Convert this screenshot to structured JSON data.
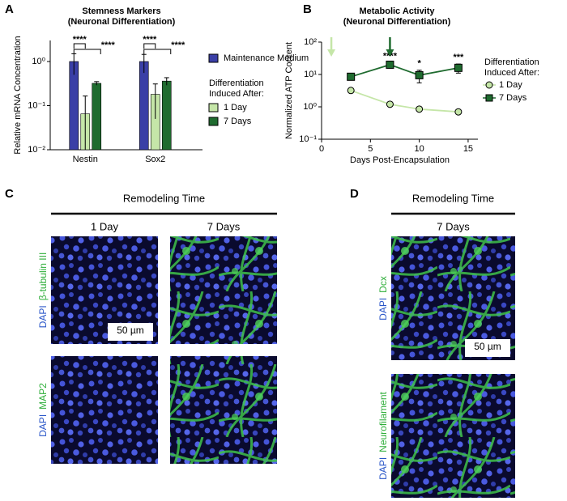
{
  "panel_labels": [
    "A",
    "B",
    "C",
    "D"
  ],
  "chart_data": [
    {
      "type": "bar",
      "title": "Stemness Markers",
      "subtitle": "(Neuronal Differentiation)",
      "y_label": "Relative mRNA Concentration",
      "log_y": true,
      "ylim": [
        0.01,
        3
      ],
      "yticks": [
        {
          "value": 0.01,
          "label": "10⁻²"
        },
        {
          "value": 0.1,
          "label": "10⁻¹"
        },
        {
          "value": 1,
          "label": "10⁰"
        }
      ],
      "categories": [
        "Nestin",
        "Sox2"
      ],
      "series": [
        {
          "name": "Maintenance Medium",
          "color": "#3a3fa6",
          "values": [
            1,
            1
          ],
          "errors": [
            0.5,
            0.45
          ]
        },
        {
          "name": "1 Day",
          "color": "#c5e6a8",
          "values": [
            0.065,
            0.18
          ],
          "errors": [
            0.1,
            0.13
          ]
        },
        {
          "name": "7 Days",
          "color": "#1f6b2f",
          "values": [
            0.32,
            0.36
          ],
          "errors": [
            0.03,
            0.07
          ]
        }
      ],
      "legend_title": [
        "Differentiation",
        "Induced After:"
      ],
      "significance": [
        [
          "****",
          "****"
        ],
        [
          "****",
          "****"
        ]
      ]
    },
    {
      "type": "line",
      "title": "Metabolic Activity",
      "subtitle": "(Neuronal Differentiation)",
      "x_label": "Days Post-Encapsulation",
      "y_label": "Normalized ATP Content",
      "log_y": true,
      "xlim": [
        0,
        16
      ],
      "xticks": [
        0,
        5,
        10,
        15
      ],
      "ylim": [
        0.1,
        100
      ],
      "yticks": [
        {
          "value": 0.1,
          "label": "10⁻¹"
        },
        {
          "value": 1,
          "label": "10⁰"
        },
        {
          "value": 10,
          "label": "10¹"
        },
        {
          "value": 100,
          "label": "10²"
        }
      ],
      "series": [
        {
          "name": "1 Day",
          "color": "#c5e6a8",
          "marker": "circle",
          "x": [
            3,
            7,
            10,
            14
          ],
          "values": [
            3.2,
            1.2,
            0.85,
            0.7
          ]
        },
        {
          "name": "7 Days",
          "color": "#1f6b2f",
          "marker": "square",
          "x": [
            3,
            7,
            10,
            14
          ],
          "values": [
            8.5,
            20,
            9.5,
            16
          ],
          "errors": [
            1,
            3,
            4,
            5
          ]
        }
      ],
      "legend_title": [
        "Differentiation",
        "Induced After:"
      ],
      "significance": [
        null,
        "****",
        "*",
        "***"
      ],
      "arrows": [
        {
          "x": 1,
          "color": "#c5e6a8"
        },
        {
          "x": 7,
          "color": "#1f6b2f"
        }
      ]
    }
  ],
  "figure_c": {
    "header": "Remodeling Time",
    "columns": [
      "1 Day",
      "7 Days"
    ],
    "rows": [
      [
        "DAPI",
        "β-tubulin III"
      ],
      [
        "DAPI",
        "MAP2"
      ]
    ],
    "scale_bar": "50 µm"
  },
  "figure_d": {
    "header": "Remodeling Time",
    "columns": [
      "7 Days"
    ],
    "rows": [
      [
        "DAPI",
        "Dcx"
      ],
      [
        "DAPI",
        "Neurofilament"
      ]
    ],
    "scale_bar": "50 µm"
  }
}
